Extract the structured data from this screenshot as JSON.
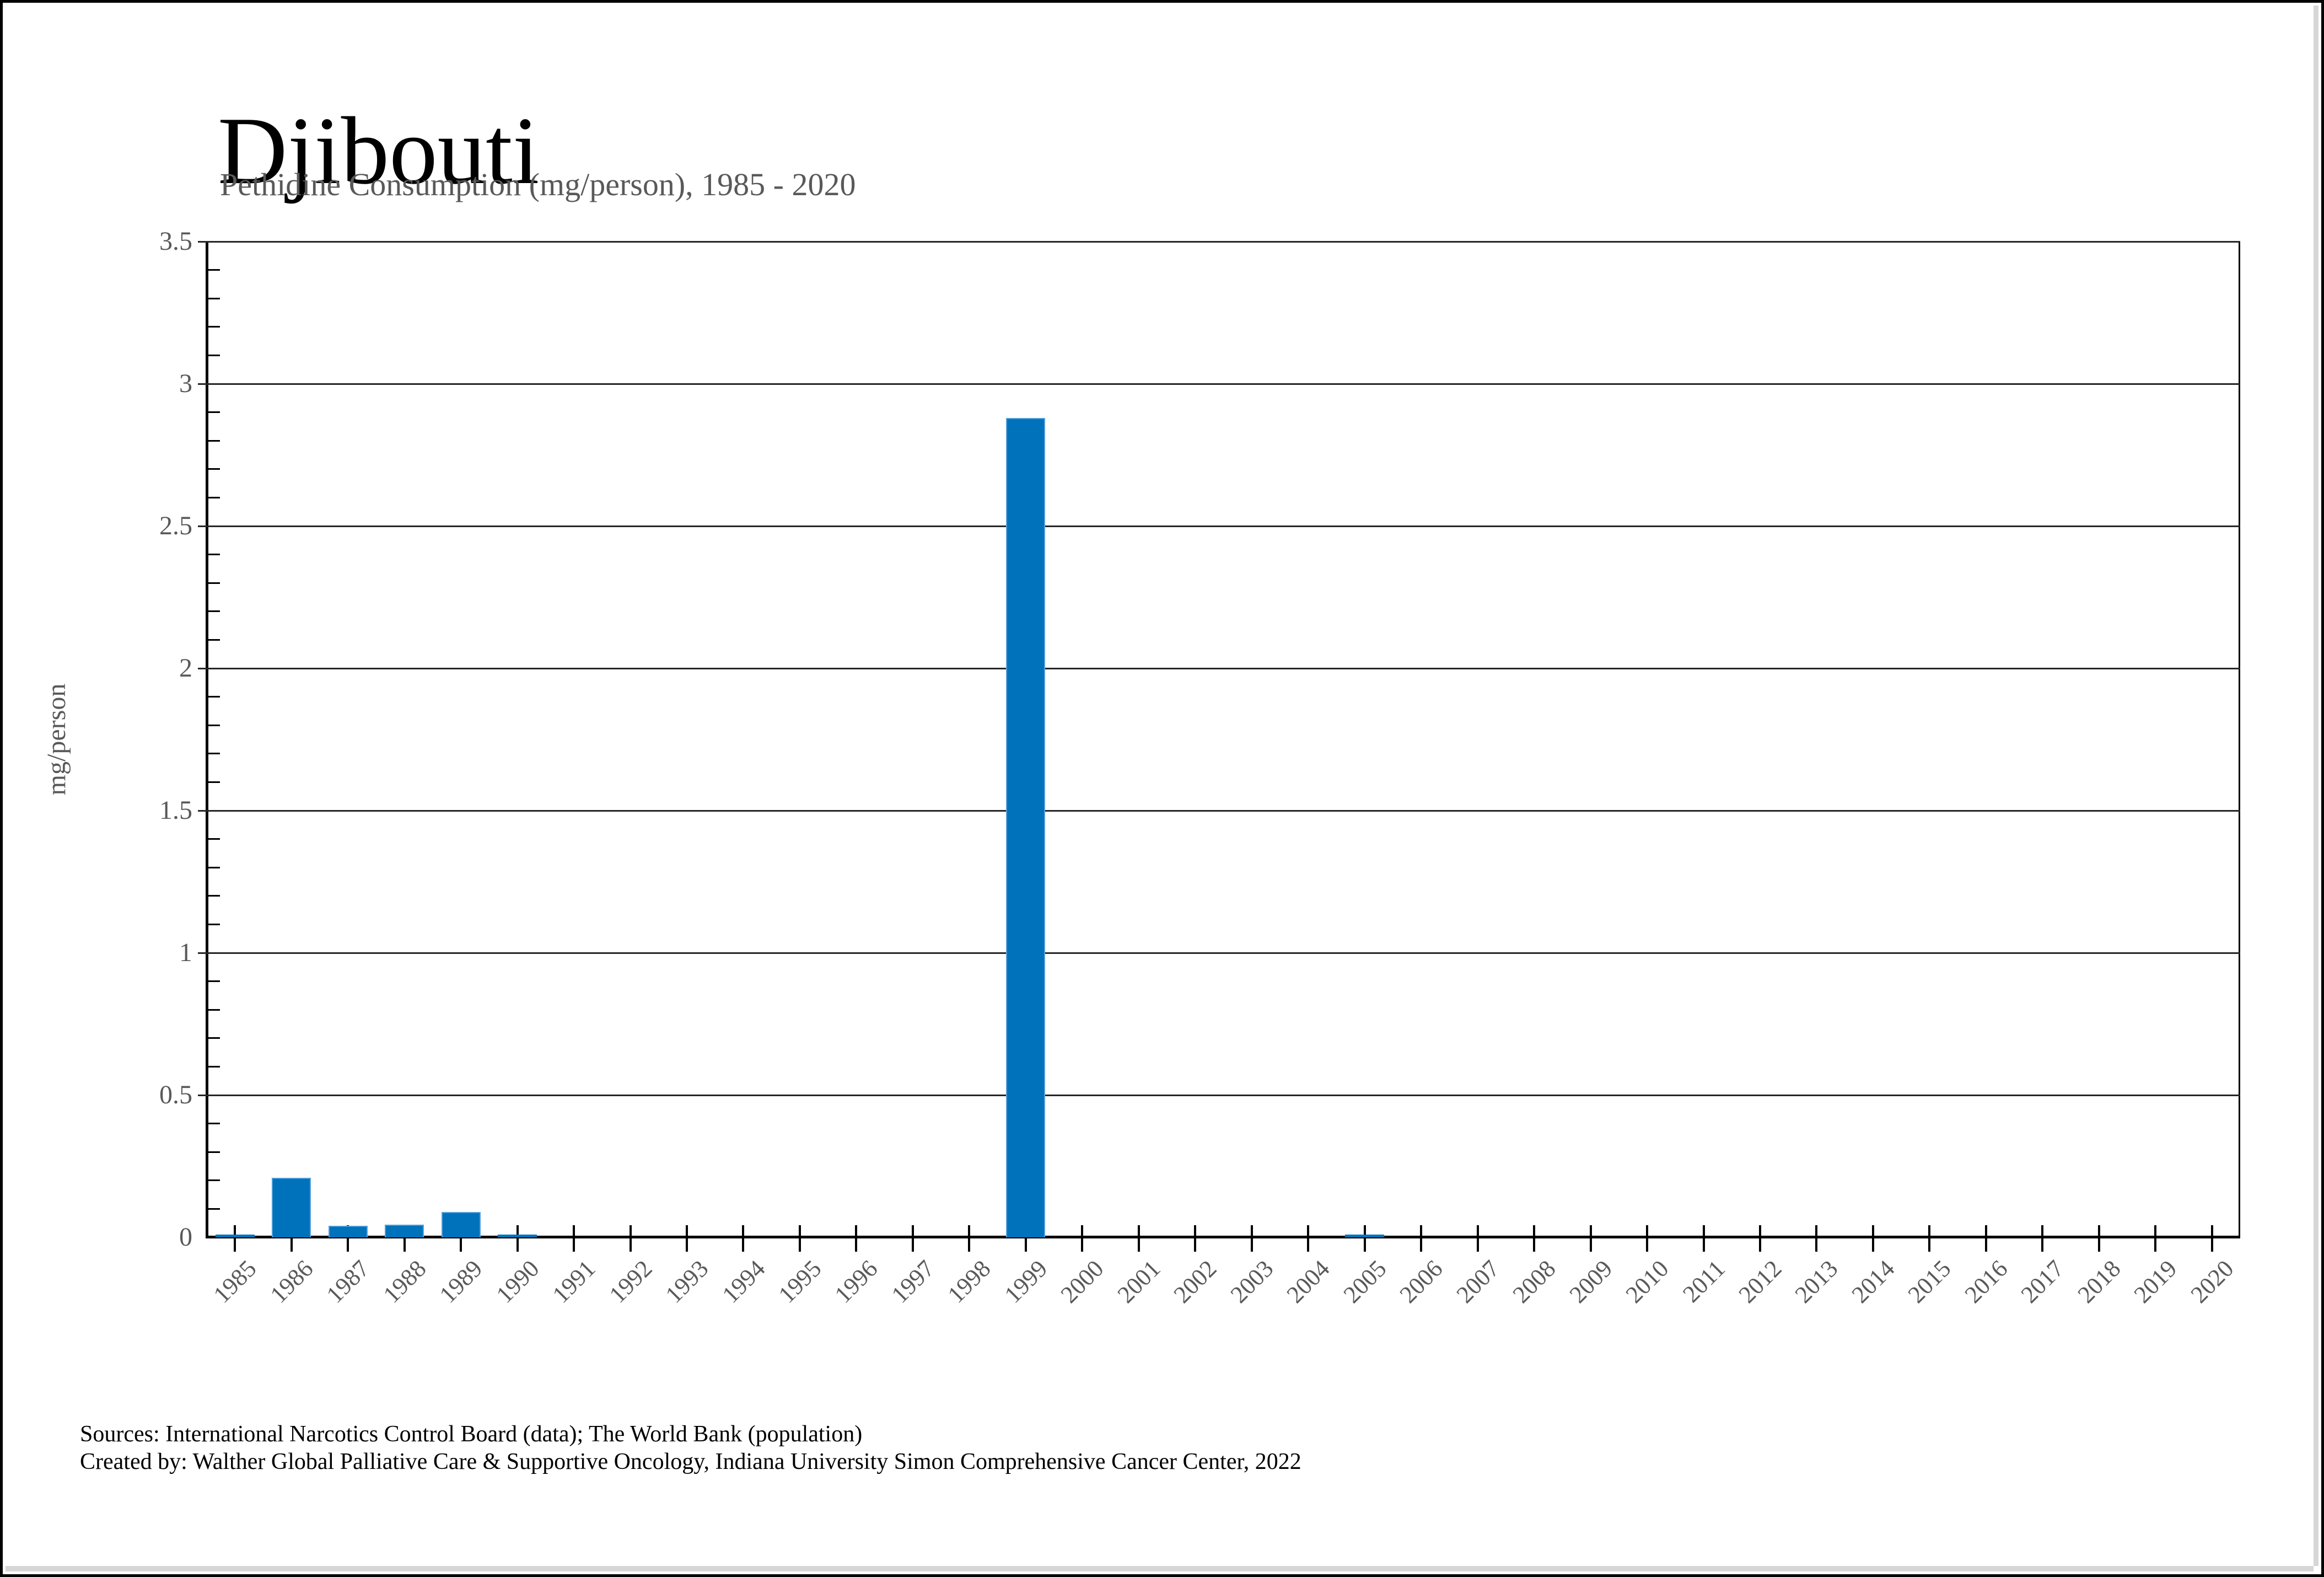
{
  "page": {
    "title": "Djibouti",
    "subtitle": "Pethidine Consumption (mg/person), 1985 - 2020",
    "footer_line1": "Sources: International Narcotics Control Board (data); The World Bank (population)",
    "footer_line2": "Created by: Walther Global Palliative Care & Supportive Oncology, Indiana University Simon Comprehensive Cancer Center, 2022"
  },
  "chart_data": {
    "type": "bar",
    "title": "Djibouti",
    "subtitle": "Pethidine Consumption (mg/person), 1985 - 2020",
    "xlabel": "",
    "ylabel": "mg/person",
    "categories": [
      "1985",
      "1986",
      "1987",
      "1988",
      "1989",
      "1990",
      "1991",
      "1992",
      "1993",
      "1994",
      "1995",
      "1996",
      "1997",
      "1998",
      "1999",
      "2000",
      "2001",
      "2002",
      "2003",
      "2004",
      "2005",
      "2006",
      "2007",
      "2008",
      "2009",
      "2010",
      "2011",
      "2012",
      "2013",
      "2014",
      "2015",
      "2016",
      "2017",
      "2018",
      "2019",
      "2020"
    ],
    "values": [
      0.01,
      0.21,
      0.04,
      0.045,
      0.09,
      0.01,
      0,
      0,
      0,
      0,
      0,
      0,
      0,
      0,
      2.88,
      0,
      0,
      0,
      0,
      0,
      0.01,
      0,
      0,
      0,
      0,
      0,
      0,
      0,
      0,
      0,
      0,
      0,
      0,
      0,
      0,
      0
    ],
    "ylim": [
      0,
      3.5
    ],
    "ytick_step": 0.5,
    "yticks": [
      "0",
      "0.5",
      "1",
      "1.5",
      "2",
      "2.5",
      "3",
      "3.5"
    ],
    "y_minor_step": 0.1,
    "grid": true,
    "legend": "none",
    "colors": {
      "bar_fill": "#0072BC",
      "bar_edge": "#55A0DA",
      "axis": "#000000",
      "gridline": "#262626",
      "label_gray": "#595959"
    }
  }
}
